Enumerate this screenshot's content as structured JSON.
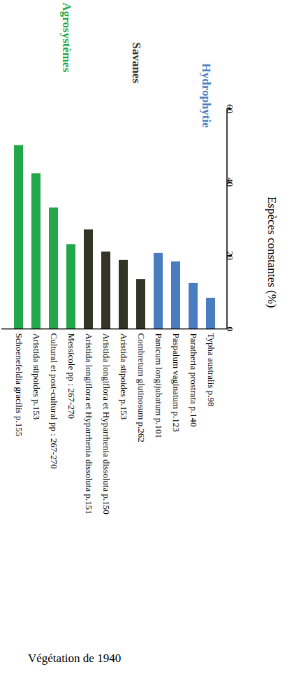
{
  "chart_data": {
    "type": "bar",
    "caption": "Végétation de 1940",
    "y_label": "Espèces constantes (%)",
    "categories": [
      "Schoenefeldia gracilis p.155",
      "Aristida stipoides p.153",
      "Cultural et post-cultural pp : 267-270",
      "Messicole pp : 267-270",
      "Aristida longiflora et Hyparrhenia dissoluta p.151",
      "Aristida longiflora et Hyparrhenia dissoluta p.150",
      "Aristida stipoides p.153",
      "Combretum glutinosum p.262",
      "Panicum longijubatum p.101",
      "Paspalum vaginatum p.123",
      "Paratheria prostrata p.140",
      "Typha australis p.98"
    ],
    "series": [
      {
        "name": "Agrosystèmes",
        "color": "#22a84a",
        "values": [
          50,
          42.3,
          33,
          23,
          null,
          null,
          null,
          null,
          null,
          null,
          null,
          null
        ]
      },
      {
        "name": "Savanes",
        "color": "#333326",
        "values": [
          null,
          null,
          null,
          null,
          27,
          21,
          18.7,
          13.5,
          null,
          null,
          null,
          null
        ]
      },
      {
        "name": "Hydrophytie",
        "color": "#4a7cc0",
        "values": [
          null,
          null,
          null,
          null,
          null,
          null,
          null,
          null,
          20.6,
          18.3,
          12.4,
          8.4
        ]
      }
    ],
    "ylim": [
      0,
      60
    ],
    "yticks": [
      0,
      20,
      40,
      60
    ]
  }
}
